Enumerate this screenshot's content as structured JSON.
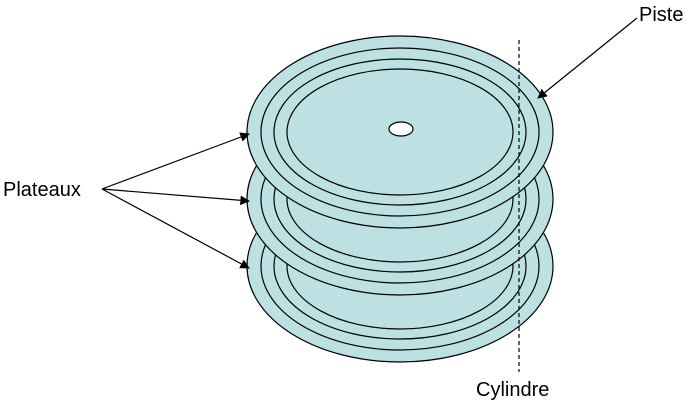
{
  "labels": {
    "plateaux": "Plateaux",
    "piste": "Piste",
    "cylindre": "Cylindre"
  },
  "colors": {
    "platter_fill": "#bde0e2",
    "outline": "#000000",
    "background": "#ffffff"
  },
  "platters": [
    {
      "name": "bottom"
    },
    {
      "name": "middle"
    },
    {
      "name": "top"
    }
  ]
}
